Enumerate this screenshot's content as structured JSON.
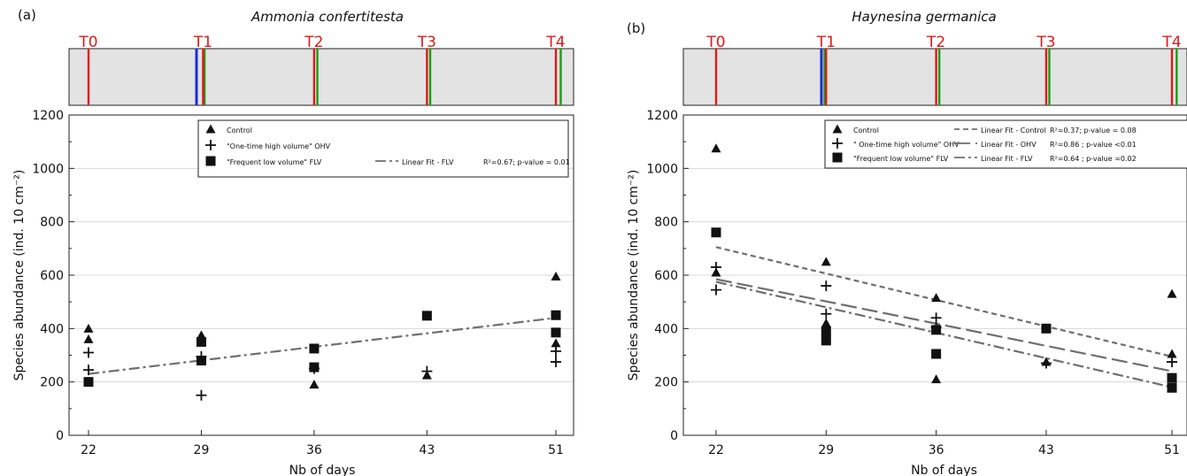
{
  "chart_data": [
    {
      "type": "scatter",
      "panel_label": "(a)",
      "title": "Ammonia confertitesta",
      "xlabel": "Nb of days",
      "ylabel": "Species abundance (ind. 10 cm⁻²)",
      "x_ticks": [
        "22",
        "29",
        "36",
        "43",
        "51"
      ],
      "y_ticks": [
        "0",
        "200",
        "400",
        "600",
        "800",
        "1000",
        "1200"
      ],
      "xlim": [
        20,
        52
      ],
      "ylim": [
        0,
        1200
      ],
      "timeline": {
        "labels": [
          "T0",
          "T1",
          "T2",
          "T3",
          "T4"
        ],
        "days": [
          22,
          29,
          36,
          43,
          51
        ],
        "blue_day": 28.7,
        "green_days": [
          29.2,
          36.2,
          43.2,
          51.3
        ]
      },
      "series": [
        {
          "name": "Control",
          "marker": "triangle",
          "points": [
            [
              22,
              400
            ],
            [
              22,
              360
            ],
            [
              29,
              375
            ],
            [
              29,
              365
            ],
            [
              36,
              190
            ],
            [
              43,
              225
            ],
            [
              51,
              595
            ],
            [
              51,
              345
            ]
          ]
        },
        {
          "name": "\"One-time high volume\" OHV",
          "marker": "plus",
          "points": [
            [
              22,
              310
            ],
            [
              22,
              245
            ],
            [
              29,
              295
            ],
            [
              29,
              150
            ],
            [
              36,
              250
            ],
            [
              43,
              240
            ],
            [
              51,
              315
            ],
            [
              51,
              275
            ]
          ]
        },
        {
          "name": "\"Frequent low volume\" FLV",
          "marker": "square",
          "points": [
            [
              22,
              200
            ],
            [
              29,
              350
            ],
            [
              29,
              280
            ],
            [
              36,
              325
            ],
            [
              36,
              255
            ],
            [
              43,
              448
            ],
            [
              51,
              450
            ],
            [
              51,
              385
            ]
          ]
        }
      ],
      "fits": [
        {
          "name": "Linear Fit - FLV",
          "style": "dashdot",
          "x": [
            22,
            51
          ],
          "y": [
            230,
            440
          ],
          "stats": "R²=0.67; p-value = 0.01"
        }
      ]
    },
    {
      "type": "scatter",
      "panel_label": "(b)",
      "title": "Haynesina germanica",
      "xlabel": "Nb of days",
      "ylabel": "Species abundance (ind. 10 cm⁻²)",
      "x_ticks": [
        "22",
        "29",
        "36",
        "43",
        "51"
      ],
      "y_ticks": [
        "0",
        "200",
        "400",
        "600",
        "800",
        "1000",
        "1200"
      ],
      "xlim": [
        20,
        52
      ],
      "ylim": [
        0,
        1200
      ],
      "timeline": {
        "labels": [
          "T0",
          "T1",
          "T2",
          "T3",
          "T4"
        ],
        "days": [
          22,
          29,
          36,
          43,
          51
        ],
        "blue_day": 28.7,
        "green_days": [
          28.9,
          36.2,
          43.2,
          51.3
        ]
      },
      "series": [
        {
          "name": "Control",
          "marker": "triangle",
          "points": [
            [
              22,
              1075
            ],
            [
              22,
              610
            ],
            [
              29,
              650
            ],
            [
              29,
              420
            ],
            [
              36,
              515
            ],
            [
              36,
              210
            ],
            [
              43,
              275
            ],
            [
              51,
              530
            ],
            [
              51,
              305
            ]
          ]
        },
        {
          "name": "\" One-time high volume\" OHV",
          "marker": "plus",
          "points": [
            [
              22,
              630
            ],
            [
              22,
              545
            ],
            [
              29,
              560
            ],
            [
              29,
              455
            ],
            [
              36,
              440
            ],
            [
              36,
              405
            ],
            [
              43,
              270
            ],
            [
              51,
              275
            ]
          ]
        },
        {
          "name": "\"Frequent low volume\" FLV",
          "marker": "square",
          "points": [
            [
              22,
              760
            ],
            [
              29,
              390
            ],
            [
              29,
              355
            ],
            [
              36,
              395
            ],
            [
              36,
              305
            ],
            [
              43,
              400
            ],
            [
              51,
              215
            ],
            [
              51,
              178
            ]
          ]
        }
      ],
      "fits": [
        {
          "name": "Linear Fit - Control",
          "style": "shortdash",
          "x": [
            22,
            51
          ],
          "y": [
            705,
            295
          ],
          "stats": "R²=0.37; p-value = 0.08"
        },
        {
          "name": "Linear Fit - OHV",
          "style": "longdash",
          "x": [
            22,
            51
          ],
          "y": [
            585,
            240
          ],
          "stats": "R²=0.86 ; p-value <0.01"
        },
        {
          "name": "Linear Fit - FLV",
          "style": "dashdot",
          "x": [
            22,
            51
          ],
          "y": [
            575,
            180
          ],
          "stats": "R²=0.64 ; p-value =0.02"
        }
      ]
    }
  ]
}
